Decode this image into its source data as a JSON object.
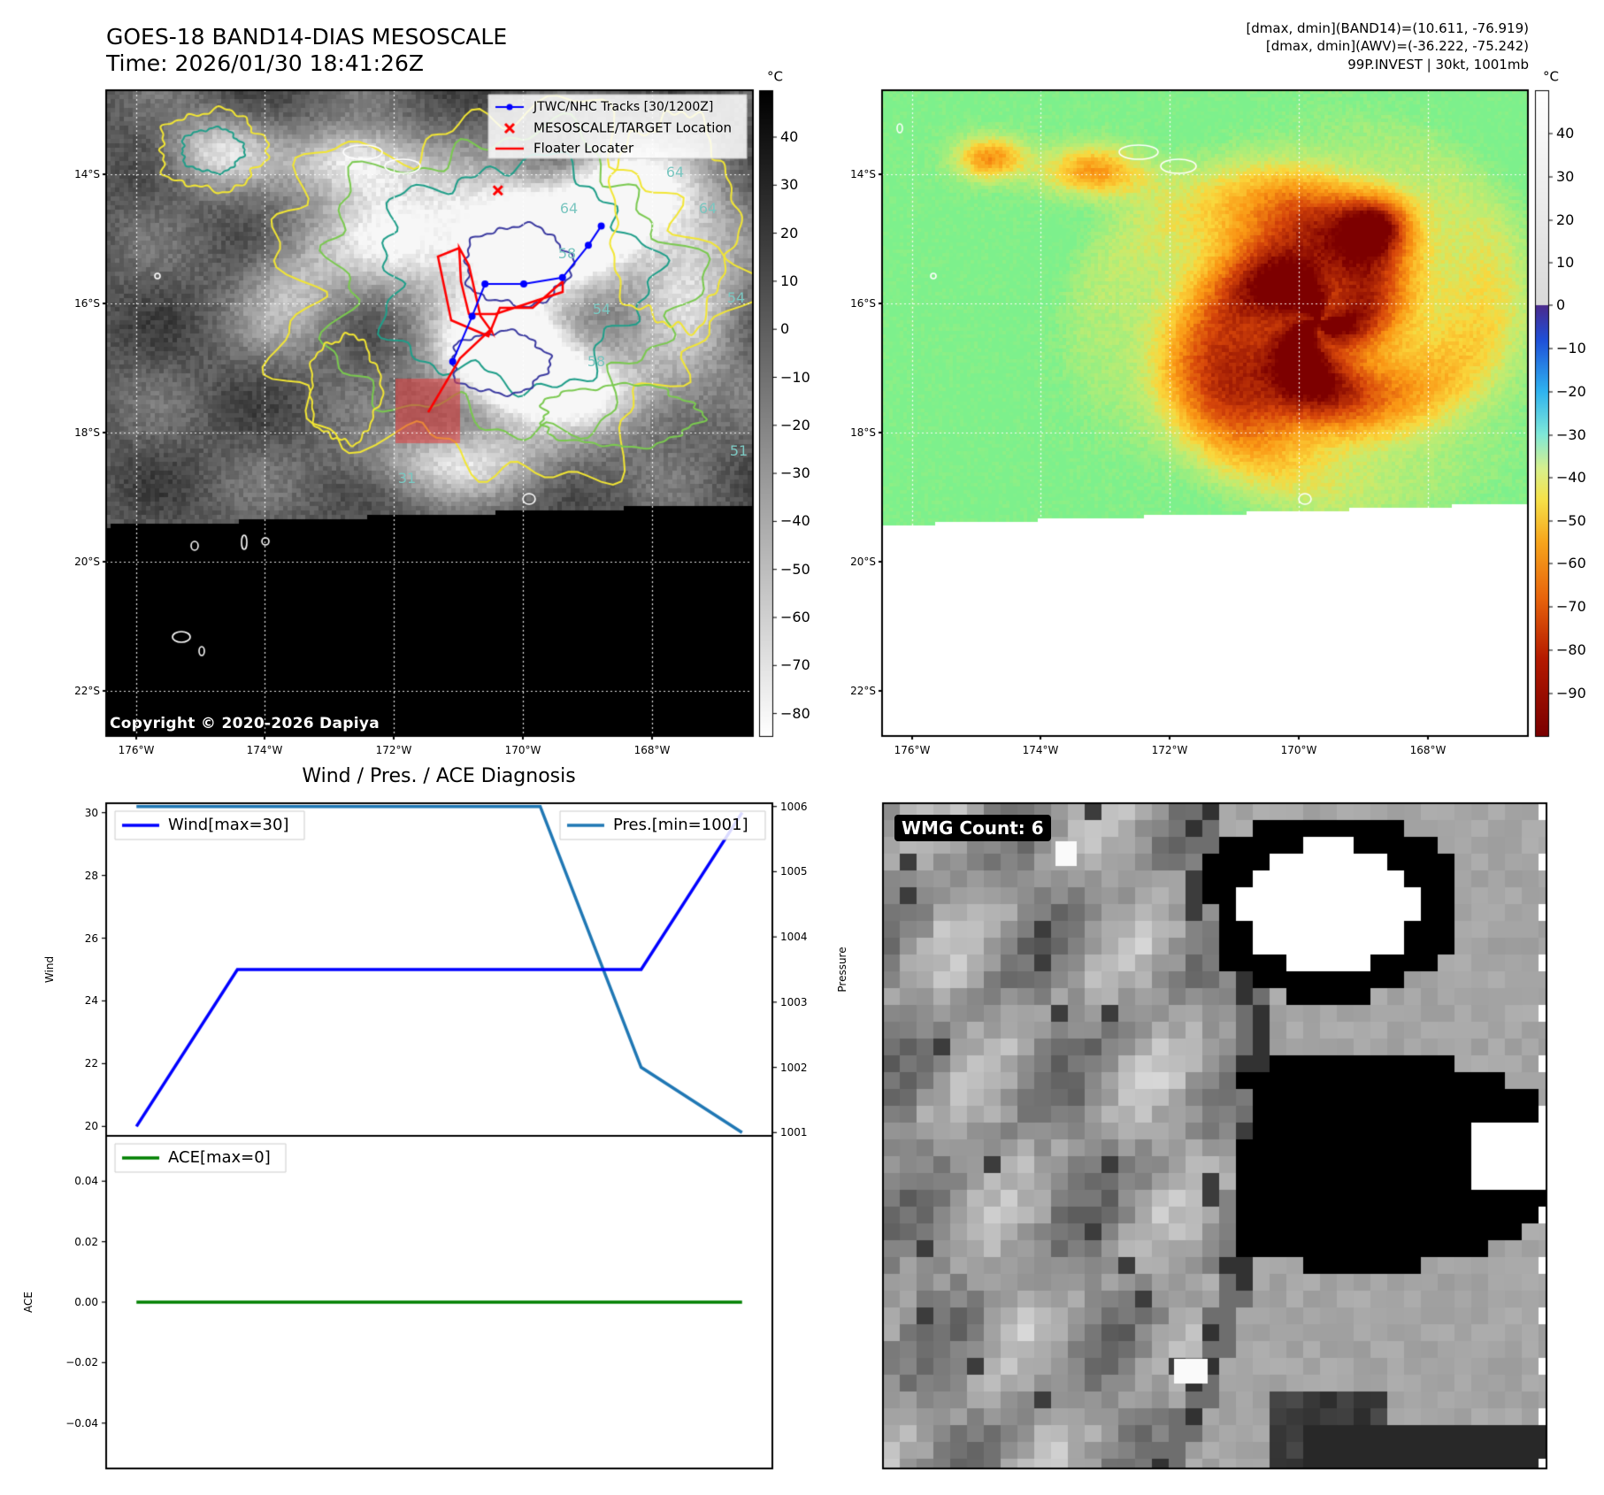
{
  "header": {
    "title_line1": "GOES-18 BAND14-DIAS MESOSCALE",
    "title_line2": "Time: 2026/01/30 18:41:26Z",
    "info_line1": "[dmax, dmin](BAND14)=(10.611, -76.919)",
    "info_line2": "[dmax, dmin](AWV)=(-36.222, -75.242)",
    "info_line3": "99P.INVEST | 30kt, 1001mb"
  },
  "colors": {
    "track": "#0000ff",
    "target_marker": "#ff0000",
    "floater": "#ff0000",
    "contour_yellow": "#f2e634",
    "contour_green": "#7ac94f",
    "contour_teal": "#1f9e89",
    "contour_navy": "#3b3aa0",
    "wind_line": "#0000ff",
    "pressure_line": "#1f77b4",
    "ace_line": "#008000"
  },
  "map_ir": {
    "colorbar_unit": "°C",
    "colorbar_ticks": [
      "40",
      "30",
      "20",
      "10",
      "0",
      "−10",
      "−20",
      "−30",
      "−40",
      "−50",
      "−60",
      "−70",
      "−80"
    ],
    "lat_labels": [
      "14°S",
      "16°S",
      "18°S",
      "20°S",
      "22°S"
    ],
    "lon_labels": [
      "176°W",
      "174°W",
      "172°W",
      "170°W",
      "168°W"
    ],
    "copyright": "Copyright © 2020-2026 Dapiya",
    "contour_labels": [
      "64",
      "64",
      "64",
      "58",
      "58",
      "54",
      "54",
      "51",
      "31"
    ],
    "legend": {
      "tracks": "JTWC/NHC Tracks [30/1200Z]",
      "target": "MESOSCALE/TARGET Location",
      "floater": "Floater Locater"
    }
  },
  "map_awv": {
    "colorbar_unit": "°C",
    "colorbar_ticks": [
      "40",
      "30",
      "20",
      "10",
      "0",
      "−10",
      "−20",
      "−30",
      "−40",
      "−50",
      "−60",
      "−70",
      "−80",
      "−90"
    ],
    "lat_labels": [
      "14°S",
      "16°S",
      "18°S",
      "20°S",
      "22°S"
    ],
    "lon_labels": [
      "176°W",
      "174°W",
      "172°W",
      "170°W",
      "168°W"
    ]
  },
  "diagnosis": {
    "title": "Wind / Pres. / ACE Diagnosis",
    "wind_ylabel": "Wind",
    "pressure_ylabel": "Pressure",
    "ace_ylabel": "ACE",
    "wind_legend": "Wind[max=30]",
    "pressure_legend": "Pres.[min=1001]",
    "ace_legend": "ACE[max=0]",
    "wind_ticks": [
      "20",
      "22",
      "24",
      "26",
      "28",
      "30"
    ],
    "pressure_ticks": [
      "1001",
      "1002",
      "1003",
      "1004",
      "1005",
      "1006"
    ],
    "ace_ticks": [
      "0.04",
      "0.02",
      "0.00",
      "−0.02",
      "−0.04"
    ]
  },
  "wmg": {
    "label": "WMG Count: 6"
  },
  "chart_data": [
    {
      "type": "line",
      "title": "Wind / Pres. / ACE Diagnosis",
      "x": [
        0,
        1,
        2,
        3,
        4,
        5,
        6
      ],
      "series": [
        {
          "name": "Wind[max=30]",
          "axis": "left",
          "values": [
            20,
            25,
            25,
            25,
            25,
            25,
            30
          ]
        },
        {
          "name": "Pres.[min=1001]",
          "axis": "right",
          "values": [
            1006,
            1006,
            1006,
            1006,
            1006,
            1002,
            1001
          ]
        }
      ],
      "ylabel": "Wind",
      "y2label": "Pressure",
      "ylim": [
        19.7,
        30.3
      ],
      "y2lim": [
        1000.95,
        1006.05
      ],
      "legend": [
        "upper-left",
        "upper-right"
      ]
    },
    {
      "type": "line",
      "x": [
        0,
        1,
        2,
        3,
        4,
        5,
        6
      ],
      "series": [
        {
          "name": "ACE[max=0]",
          "values": [
            0,
            0,
            0,
            0,
            0,
            0,
            0
          ]
        }
      ],
      "ylabel": "ACE",
      "ylim": [
        -0.055,
        0.055
      ],
      "legend": "upper-left"
    },
    {
      "type": "line",
      "title": "JTWC/NHC Tracks [30/1200Z]",
      "x_units": "longitude (°W)",
      "y_units": "latitude (°S)",
      "x": [
        171.1,
        170.8,
        170.6,
        170.0,
        169.4,
        169.0,
        168.8
      ],
      "y": [
        16.9,
        16.2,
        15.7,
        15.7,
        15.6,
        15.1,
        14.8
      ]
    },
    {
      "type": "scatter",
      "title": "MESOSCALE/TARGET Location",
      "x_units": "longitude (°W)",
      "y_units": "latitude (°S)",
      "x": [
        170.4
      ],
      "y": [
        14.25
      ]
    }
  ]
}
